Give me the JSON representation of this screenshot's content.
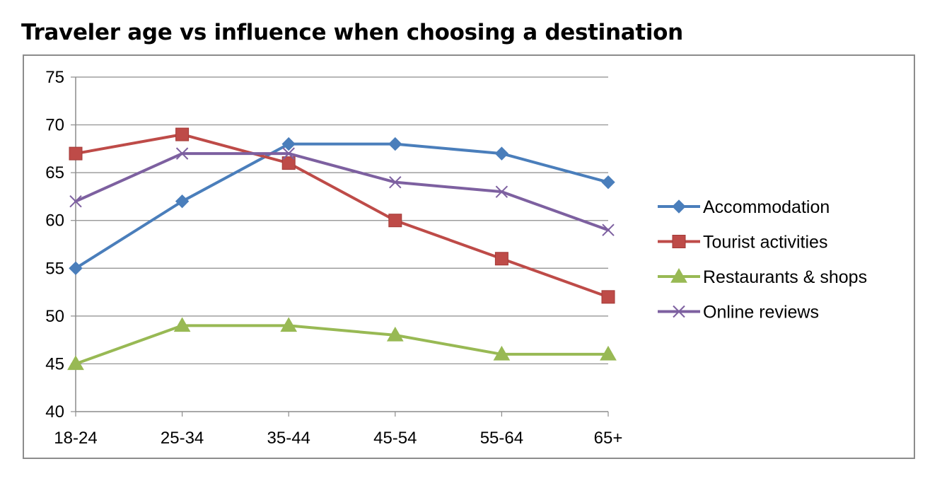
{
  "chart_data": {
    "type": "line",
    "title": "Traveler age vs influence when choosing a destination",
    "xlabel": "",
    "ylabel": "",
    "categories": [
      "18-24",
      "25-34",
      "35-44",
      "45-54",
      "55-64",
      "65+"
    ],
    "ylim": [
      40,
      75
    ],
    "yticks": [
      40,
      45,
      50,
      55,
      60,
      65,
      70,
      75
    ],
    "grid": true,
    "legend_position": "right",
    "series": [
      {
        "name": "Accommodation",
        "values": [
          55,
          62,
          68,
          68,
          67,
          64
        ],
        "color": "#4a7ebb",
        "marker": "diamond"
      },
      {
        "name": "Tourist activities",
        "values": [
          67,
          69,
          66,
          60,
          56,
          52
        ],
        "color": "#be4b48",
        "marker": "square"
      },
      {
        "name": "Restaurants & shops",
        "values": [
          45,
          49,
          49,
          48,
          46,
          46
        ],
        "color": "#98b954",
        "marker": "triangle"
      },
      {
        "name": "Online reviews",
        "values": [
          62,
          67,
          67,
          64,
          63,
          59
        ],
        "color": "#7d60a0",
        "marker": "x"
      }
    ]
  }
}
